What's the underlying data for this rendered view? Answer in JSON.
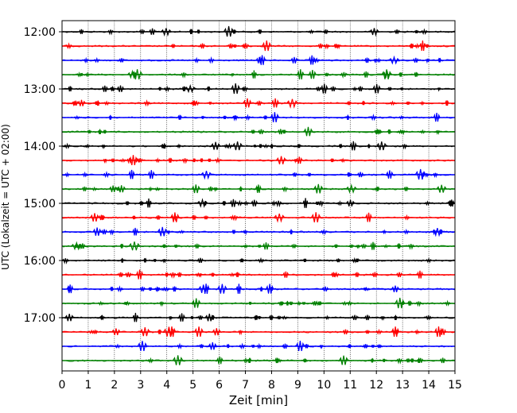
{
  "chart_data": {
    "type": "line",
    "title": "",
    "xlabel": "Zeit  [min]",
    "ylabel": "UTC (Lokalzeit = UTC + 02:00)",
    "xlim": [
      0,
      15
    ],
    "x_ticks": [
      "0",
      "1",
      "2",
      "3",
      "4",
      "5",
      "6",
      "7",
      "8",
      "9",
      "10",
      "11",
      "12",
      "13",
      "14",
      "15"
    ],
    "y_tick_labels": [
      "12:00",
      "13:00",
      "14:00",
      "15:00",
      "16:00",
      "17:00"
    ],
    "grid": "vertical dotted",
    "trace_colors": [
      "#000000",
      "#ff0000",
      "#0000ff",
      "#008000"
    ],
    "traces": [
      {
        "start": "12:00"
      },
      {
        "start": "12:15"
      },
      {
        "start": "12:30"
      },
      {
        "start": "12:45"
      },
      {
        "start": "13:00"
      },
      {
        "start": "13:15"
      },
      {
        "start": "13:30"
      },
      {
        "start": "13:45"
      },
      {
        "start": "14:00"
      },
      {
        "start": "14:15"
      },
      {
        "start": "14:30"
      },
      {
        "start": "14:45"
      },
      {
        "start": "15:00"
      },
      {
        "start": "15:15"
      },
      {
        "start": "15:30"
      },
      {
        "start": "15:45"
      },
      {
        "start": "16:00"
      },
      {
        "start": "16:15"
      },
      {
        "start": "16:30"
      },
      {
        "start": "16:45"
      },
      {
        "start": "17:00"
      },
      {
        "start": "17:15"
      },
      {
        "start": "17:30"
      },
      {
        "start": "17:45"
      }
    ]
  }
}
